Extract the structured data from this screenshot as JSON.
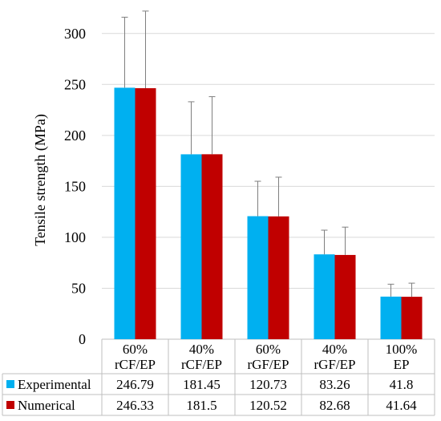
{
  "chart_data": {
    "type": "bar",
    "ylabel": "Tensile strength (MPa)",
    "ylim": [
      0,
      325
    ],
    "yticks": [
      0,
      50,
      100,
      150,
      200,
      250,
      300
    ],
    "grid": true,
    "categories": [
      [
        "60%",
        "rCF/EP"
      ],
      [
        "40%",
        "rCF/EP"
      ],
      [
        "60%",
        "rGF/EP"
      ],
      [
        "40%",
        "rGF/EP"
      ],
      [
        "100%",
        "EP"
      ]
    ],
    "series": [
      {
        "name": "Experimental",
        "color": "#00B0F0",
        "values": [
          246.79,
          181.45,
          120.73,
          83.26,
          41.8
        ],
        "labels": [
          "246.79",
          "181.45",
          "120.73",
          "83.26",
          "41.8"
        ],
        "error_upper": [
          316,
          233,
          155,
          107,
          54
        ]
      },
      {
        "name": "Numerical",
        "color": "#C00000",
        "values": [
          246.33,
          181.5,
          120.52,
          82.68,
          41.64
        ],
        "labels": [
          "246.33",
          "181.5",
          "120.52",
          "82.68",
          "41.64"
        ],
        "error_upper": [
          322,
          238,
          159,
          110,
          55
        ]
      }
    ],
    "legend_placement": "data-table"
  }
}
